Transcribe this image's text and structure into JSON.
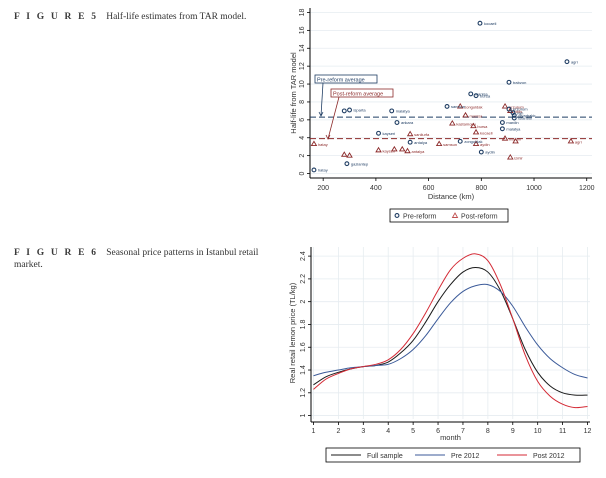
{
  "figures": [
    {
      "number_label": "F I G U R E  5",
      "caption": "Half-life estimates from TAR model."
    },
    {
      "number_label": "F I G U R E  6",
      "caption": "Seasonal price patterns in Istanbul retail market."
    }
  ],
  "chart_data": [
    {
      "type": "scatter",
      "title": "Half-life estimates from TAR model.",
      "xlabel": "Distance (km)",
      "ylabel": "Half-life from TAR model",
      "xlim": [
        150,
        1220
      ],
      "ylim": [
        -0.5,
        18.5
      ],
      "xticks": [
        200,
        400,
        600,
        800,
        1000,
        1200
      ],
      "yticks": [
        0,
        2,
        4,
        6,
        8,
        10,
        12,
        14,
        16,
        18
      ],
      "grid": true,
      "legend": {
        "placement": "bottom-center",
        "entries": [
          {
            "name": "Pre-reform",
            "marker": "circle",
            "color": "#1f3d63"
          },
          {
            "name": "Post-reform",
            "marker": "triangle",
            "color": "#8c2a2a"
          }
        ]
      },
      "reference_lines": [
        {
          "label": "Pre-reform average",
          "y": 6.3,
          "color": "#1f3d63"
        },
        {
          "label": "Post-reform average",
          "y": 3.9,
          "color": "#8c2a2a"
        }
      ],
      "series": [
        {
          "name": "Pre-reform",
          "points": [
            {
              "x": 795,
              "y": 16.8,
              "label": "kocaeli"
            },
            {
              "x": 1125,
              "y": 12.5,
              "label": "agri"
            },
            {
              "x": 905,
              "y": 10.2,
              "label": "trabzon"
            },
            {
              "x": 760,
              "y": 8.9,
              "label": "manisa"
            },
            {
              "x": 780,
              "y": 8.7,
              "label": "bursa"
            },
            {
              "x": 670,
              "y": 7.5,
              "label": "samsun"
            },
            {
              "x": 460,
              "y": 7.0,
              "label": "malatya"
            },
            {
              "x": 280,
              "y": 7.0,
              "label": ""
            },
            {
              "x": 300,
              "y": 7.1,
              "label": "isparta"
            },
            {
              "x": 905,
              "y": 7.2,
              "label": "erzurum"
            },
            {
              "x": 920,
              "y": 6.8,
              "label": "van"
            },
            {
              "x": 925,
              "y": 6.5,
              "label": "diyarbakir"
            },
            {
              "x": 925,
              "y": 6.2,
              "label": "istanbul"
            },
            {
              "x": 880,
              "y": 5.7,
              "label": "mardin"
            },
            {
              "x": 880,
              "y": 5.0,
              "label": "malatya"
            },
            {
              "x": 480,
              "y": 5.7,
              "label": "ankara"
            },
            {
              "x": 410,
              "y": 4.5,
              "label": "kayseri"
            },
            {
              "x": 530,
              "y": 3.5,
              "label": "antalya"
            },
            {
              "x": 720,
              "y": 3.6,
              "label": "zonguldak"
            },
            {
              "x": 800,
              "y": 2.4,
              "label": "aydin"
            },
            {
              "x": 290,
              "y": 1.1,
              "label": "gaziantep"
            },
            {
              "x": 165,
              "y": 0.4,
              "label": "hatay"
            }
          ]
        },
        {
          "name": "Post-reform",
          "points": [
            {
              "x": 720,
              "y": 7.5,
              "label": "zonguldak"
            },
            {
              "x": 890,
              "y": 7.5,
              "label": "erzurum"
            },
            {
              "x": 910,
              "y": 7.0,
              "label": "bitlis"
            },
            {
              "x": 740,
              "y": 6.5,
              "label": "manisa"
            },
            {
              "x": 690,
              "y": 5.6,
              "label": "kastamonu"
            },
            {
              "x": 770,
              "y": 5.3,
              "label": "bursa"
            },
            {
              "x": 780,
              "y": 4.6,
              "label": "kocaeli"
            },
            {
              "x": 530,
              "y": 4.4,
              "label": "sanliurfa"
            },
            {
              "x": 890,
              "y": 3.9,
              "label": "mardin"
            },
            {
              "x": 930,
              "y": 3.6,
              "label": ""
            },
            {
              "x": 1140,
              "y": 3.6,
              "label": "agri"
            },
            {
              "x": 640,
              "y": 3.3,
              "label": "samsun"
            },
            {
              "x": 780,
              "y": 3.3,
              "label": "aydin"
            },
            {
              "x": 165,
              "y": 3.3,
              "label": "hatay"
            },
            {
              "x": 410,
              "y": 2.6,
              "label": "kayseri"
            },
            {
              "x": 470,
              "y": 2.7,
              "label": ""
            },
            {
              "x": 500,
              "y": 2.7,
              "label": ""
            },
            {
              "x": 520,
              "y": 2.5,
              "label": "antalya"
            },
            {
              "x": 280,
              "y": 2.1,
              "label": ""
            },
            {
              "x": 300,
              "y": 2.0,
              "label": ""
            },
            {
              "x": 910,
              "y": 1.8,
              "label": "izmir"
            }
          ]
        }
      ]
    },
    {
      "type": "line",
      "title": "Seasonal price patterns in Istanbul retail market.",
      "xlabel": "month",
      "ylabel": "Real retail lemon price (TL/kg)",
      "xlim": [
        0.9,
        12.1
      ],
      "ylim": [
        0.97,
        2.48
      ],
      "xticks": [
        1,
        2,
        3,
        4,
        5,
        6,
        7,
        8,
        9,
        10,
        11,
        12
      ],
      "yticks": [
        1,
        1.2,
        1.4,
        1.6,
        1.8,
        2,
        2.2,
        2.4
      ],
      "grid": true,
      "legend": {
        "placement": "bottom-center"
      },
      "x": [
        1,
        1.5,
        2,
        2.5,
        3,
        3.5,
        4,
        4.5,
        5,
        5.5,
        6,
        6.5,
        7,
        7.5,
        8,
        8.5,
        9,
        9.5,
        10,
        10.5,
        11,
        11.5,
        12
      ],
      "series": [
        {
          "name": "Full sample",
          "color": "#1a1a1a",
          "values": [
            1.27,
            1.34,
            1.38,
            1.41,
            1.43,
            1.44,
            1.47,
            1.55,
            1.66,
            1.82,
            2.0,
            2.15,
            2.26,
            2.3,
            2.26,
            2.1,
            1.85,
            1.58,
            1.38,
            1.26,
            1.2,
            1.18,
            1.18
          ]
        },
        {
          "name": "Pre 2012",
          "color": "#3b5a99",
          "values": [
            1.35,
            1.38,
            1.4,
            1.42,
            1.43,
            1.44,
            1.45,
            1.5,
            1.58,
            1.7,
            1.85,
            1.99,
            2.09,
            2.14,
            2.15,
            2.09,
            1.96,
            1.78,
            1.62,
            1.5,
            1.42,
            1.36,
            1.33
          ]
        },
        {
          "name": "Post 2012",
          "color": "#d42a35",
          "values": [
            1.23,
            1.32,
            1.37,
            1.41,
            1.43,
            1.45,
            1.49,
            1.58,
            1.72,
            1.9,
            2.1,
            2.28,
            2.38,
            2.42,
            2.36,
            2.15,
            1.85,
            1.53,
            1.3,
            1.17,
            1.1,
            1.07,
            1.08
          ]
        }
      ]
    }
  ]
}
